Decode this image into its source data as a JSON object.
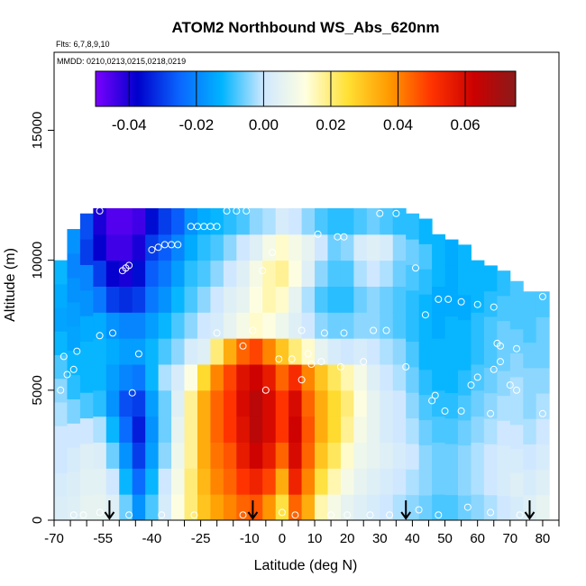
{
  "chart_data": {
    "type": "heatmap",
    "title": "ATOM2 Northbound WS_Abs_620nm",
    "subtitle_flights": "Flts: 6,7,8,9,10",
    "subtitle_dates": "MMDD: 0210,0213,0215,0218,0219",
    "xlabel": "Latitude (deg N)",
    "ylabel": "Altitude (m)",
    "xlim": [
      -70,
      85
    ],
    "ylim": [
      0,
      18000
    ],
    "x_ticks": [
      -70,
      -55,
      -40,
      -25,
      -10,
      0,
      10,
      20,
      30,
      40,
      50,
      60,
      70,
      80
    ],
    "y_ticks": [
      0,
      5000,
      10000,
      15000
    ],
    "colorbar": {
      "range": [
        -0.05,
        0.075
      ],
      "ticks": [
        "-0.04",
        "-0.02",
        "0.00",
        "0.02",
        "0.04",
        "0.06"
      ],
      "tick_values": [
        -0.04,
        -0.02,
        0.0,
        0.02,
        0.04,
        0.06
      ],
      "colors": [
        "#7a00ff",
        "#0000cc",
        "#0a66ff",
        "#00b4ff",
        "#cfe8ff",
        "#ffffe0",
        "#ffe033",
        "#ff9900",
        "#ff3300",
        "#cc0000",
        "#8b1a1a"
      ]
    },
    "columns": [
      {
        "lat": -68,
        "top": 10000,
        "values": [
          0.003,
          0.002,
          0.0,
          0.0,
          -0.002,
          -0.004,
          -0.008,
          -0.012,
          -0.015,
          -0.014,
          -0.012
        ]
      },
      {
        "lat": -64,
        "top": 11200,
        "values": [
          0.004,
          0.003,
          0.002,
          0.0,
          -0.005,
          -0.01,
          -0.012,
          -0.015,
          -0.016,
          -0.018,
          -0.02,
          -0.018
        ]
      },
      {
        "lat": -60,
        "top": 11800,
        "values": [
          0.006,
          0.005,
          0.004,
          0.0,
          -0.008,
          -0.012,
          -0.012,
          -0.014,
          -0.018,
          -0.02,
          -0.03,
          -0.028
        ]
      },
      {
        "lat": -56,
        "top": 12000,
        "values": [
          0.006,
          0.005,
          0.003,
          -0.002,
          -0.01,
          -0.012,
          -0.012,
          -0.014,
          -0.022,
          -0.03,
          -0.038,
          -0.04
        ]
      },
      {
        "lat": -52,
        "top": 12000,
        "values": [
          0.004,
          0.0,
          -0.006,
          -0.012,
          -0.018,
          -0.016,
          -0.014,
          -0.018,
          -0.03,
          -0.038,
          -0.044,
          -0.046
        ]
      },
      {
        "lat": -48,
        "top": 12000,
        "values": [
          -0.006,
          -0.012,
          -0.018,
          -0.024,
          -0.028,
          -0.02,
          -0.016,
          -0.02,
          -0.032,
          -0.04,
          -0.044,
          -0.046
        ]
      },
      {
        "lat": -44,
        "top": 12000,
        "values": [
          -0.018,
          -0.024,
          -0.03,
          -0.034,
          -0.03,
          -0.022,
          -0.016,
          -0.02,
          -0.03,
          -0.036,
          -0.04,
          -0.044
        ]
      },
      {
        "lat": -40,
        "top": 12000,
        "values": [
          -0.008,
          -0.012,
          -0.016,
          -0.018,
          -0.016,
          -0.012,
          -0.012,
          -0.016,
          -0.022,
          -0.026,
          -0.03,
          -0.036
        ]
      },
      {
        "lat": -36,
        "top": 12000,
        "values": [
          0.002,
          0.0,
          -0.004,
          -0.006,
          -0.006,
          -0.002,
          -0.008,
          -0.012,
          -0.018,
          -0.022,
          -0.026,
          -0.03
        ]
      },
      {
        "lat": -32,
        "top": 12000,
        "values": [
          0.012,
          0.01,
          0.008,
          0.006,
          0.004,
          0.002,
          -0.004,
          -0.008,
          -0.012,
          -0.016,
          -0.02,
          -0.026
        ]
      },
      {
        "lat": -28,
        "top": 12000,
        "values": [
          0.02,
          0.02,
          0.018,
          0.018,
          0.018,
          0.012,
          0.002,
          -0.004,
          -0.008,
          -0.01,
          -0.014,
          -0.018
        ]
      },
      {
        "lat": -24,
        "top": 12000,
        "values": [
          0.03,
          0.032,
          0.034,
          0.034,
          0.034,
          0.026,
          0.004,
          0.0,
          -0.004,
          -0.008,
          -0.01,
          -0.014
        ]
      },
      {
        "lat": -20,
        "top": 12000,
        "values": [
          0.036,
          0.04,
          0.042,
          0.044,
          0.044,
          0.04,
          0.02,
          0.002,
          0.0,
          -0.004,
          -0.008,
          -0.012
        ]
      },
      {
        "lat": -16,
        "top": 12000,
        "values": [
          0.04,
          0.044,
          0.046,
          0.05,
          0.05,
          0.048,
          0.034,
          0.006,
          0.004,
          0.0,
          -0.004,
          -0.01
        ]
      },
      {
        "lat": -12,
        "top": 12000,
        "values": [
          0.044,
          0.05,
          0.056,
          0.058,
          0.06,
          0.058,
          0.044,
          0.01,
          0.006,
          0.004,
          0.0,
          -0.008
        ]
      },
      {
        "lat": -8,
        "top": 12000,
        "values": [
          0.046,
          0.054,
          0.062,
          0.066,
          0.066,
          0.062,
          0.048,
          0.014,
          0.012,
          0.01,
          0.004,
          -0.004
        ]
      },
      {
        "lat": -4,
        "top": 12000,
        "values": [
          0.038,
          0.048,
          0.056,
          0.06,
          0.06,
          0.056,
          0.04,
          0.012,
          0.016,
          0.016,
          0.01,
          -0.002
        ]
      },
      {
        "lat": 0,
        "top": 12000,
        "values": [
          0.024,
          0.034,
          0.044,
          0.05,
          0.05,
          0.044,
          0.03,
          0.008,
          0.014,
          0.018,
          0.014,
          0.002
        ]
      },
      {
        "lat": 4,
        "top": 12000,
        "values": [
          0.044,
          0.054,
          0.06,
          0.062,
          0.06,
          0.052,
          0.02,
          0.004,
          0.006,
          0.012,
          0.01,
          0.0
        ]
      },
      {
        "lat": 8,
        "top": 12000,
        "values": [
          0.034,
          0.04,
          0.044,
          0.046,
          0.044,
          0.04,
          0.014,
          0.0,
          -0.002,
          0.004,
          0.006,
          -0.004
        ]
      },
      {
        "lat": 12,
        "top": 12000,
        "values": [
          0.016,
          0.024,
          0.03,
          0.034,
          0.034,
          0.03,
          0.006,
          -0.004,
          -0.008,
          -0.004,
          0.0,
          -0.008
        ]
      },
      {
        "lat": 16,
        "top": 12000,
        "values": [
          0.01,
          0.016,
          0.022,
          0.026,
          0.026,
          0.022,
          0.002,
          -0.006,
          -0.01,
          -0.008,
          -0.006,
          -0.01
        ]
      },
      {
        "lat": 20,
        "top": 12000,
        "values": [
          0.006,
          0.01,
          0.014,
          0.018,
          0.02,
          0.016,
          0.0,
          -0.006,
          -0.01,
          -0.008,
          -0.004,
          -0.01
        ]
      },
      {
        "lat": 24,
        "top": 12000,
        "values": [
          0.004,
          0.006,
          0.008,
          0.01,
          0.012,
          0.01,
          0.002,
          -0.004,
          -0.006,
          -0.002,
          0.002,
          -0.008
        ]
      },
      {
        "lat": 28,
        "top": 12000,
        "values": [
          0.002,
          0.004,
          0.006,
          0.006,
          0.006,
          0.004,
          0.0,
          -0.004,
          -0.004,
          0.0,
          0.004,
          -0.006
        ]
      },
      {
        "lat": 32,
        "top": 12000,
        "values": [
          0.0,
          0.002,
          0.004,
          0.002,
          0.002,
          0.0,
          -0.002,
          -0.006,
          -0.006,
          -0.002,
          0.002,
          -0.008
        ]
      },
      {
        "lat": 36,
        "top": 12000,
        "values": [
          -0.002,
          0.0,
          0.002,
          0.0,
          0.0,
          -0.002,
          -0.004,
          -0.008,
          -0.008,
          -0.006,
          -0.004,
          -0.01
        ]
      },
      {
        "lat": 40,
        "top": 11800,
        "values": [
          -0.004,
          -0.002,
          0.0,
          -0.002,
          -0.004,
          -0.006,
          -0.008,
          -0.01,
          -0.01,
          -0.008,
          -0.006,
          -0.01
        ]
      },
      {
        "lat": 44,
        "top": 11600,
        "values": [
          -0.006,
          -0.004,
          -0.004,
          -0.006,
          -0.008,
          -0.01,
          -0.012,
          -0.012,
          -0.012,
          -0.01,
          -0.008,
          -0.012
        ]
      },
      {
        "lat": 48,
        "top": 11000,
        "values": [
          -0.008,
          -0.006,
          -0.006,
          -0.008,
          -0.01,
          -0.012,
          -0.012,
          -0.014,
          -0.014,
          -0.012,
          -0.012
        ]
      },
      {
        "lat": 52,
        "top": 10800,
        "values": [
          -0.008,
          -0.006,
          -0.006,
          -0.008,
          -0.01,
          -0.012,
          -0.012,
          -0.012,
          -0.014,
          -0.014,
          -0.014
        ]
      },
      {
        "lat": 56,
        "top": 10600,
        "values": [
          -0.006,
          -0.004,
          -0.004,
          -0.006,
          -0.008,
          -0.01,
          -0.012,
          -0.012,
          -0.014,
          -0.012,
          -0.012
        ]
      },
      {
        "lat": 60,
        "top": 10000,
        "values": [
          -0.004,
          -0.002,
          -0.002,
          -0.004,
          -0.006,
          -0.008,
          -0.01,
          -0.01,
          -0.012,
          -0.012
        ]
      },
      {
        "lat": 64,
        "top": 9800,
        "values": [
          -0.002,
          0.0,
          0.0,
          -0.002,
          -0.004,
          -0.006,
          -0.008,
          -0.008,
          -0.01,
          -0.012
        ]
      },
      {
        "lat": 68,
        "top": 9600,
        "values": [
          0.0,
          0.002,
          0.002,
          0.0,
          -0.002,
          -0.004,
          -0.006,
          -0.006,
          -0.008,
          -0.01
        ]
      },
      {
        "lat": 72,
        "top": 9200,
        "values": [
          0.002,
          0.004,
          0.002,
          0.0,
          -0.002,
          -0.002,
          -0.004,
          -0.006,
          -0.008,
          -0.008
        ]
      },
      {
        "lat": 76,
        "top": 8800,
        "values": [
          0.004,
          0.002,
          0.0,
          -0.002,
          -0.004,
          -0.004,
          -0.006,
          -0.008,
          -0.008
        ]
      },
      {
        "lat": 80,
        "top": 8800,
        "values": [
          0.006,
          0.004,
          0.002,
          0.0,
          -0.002,
          -0.004,
          -0.006,
          -0.006,
          -0.008
        ]
      }
    ],
    "markers": [
      {
        "lat": -64,
        "alt": 200
      },
      {
        "lat": -61,
        "alt": 200
      },
      {
        "lat": -56,
        "alt": 300
      },
      {
        "lat": -47,
        "alt": 200
      },
      {
        "lat": -46,
        "alt": 4900
      },
      {
        "lat": -44,
        "alt": 6400
      },
      {
        "lat": -52,
        "alt": 7200
      },
      {
        "lat": -56,
        "alt": 7100
      },
      {
        "lat": -63,
        "alt": 6500
      },
      {
        "lat": -64,
        "alt": 5800
      },
      {
        "lat": -66,
        "alt": 5600
      },
      {
        "lat": -67,
        "alt": 6300
      },
      {
        "lat": -68,
        "alt": 5000
      },
      {
        "lat": -49,
        "alt": 9600
      },
      {
        "lat": -48,
        "alt": 9700
      },
      {
        "lat": -47,
        "alt": 9800
      },
      {
        "lat": -40,
        "alt": 10400
      },
      {
        "lat": -38,
        "alt": 10500
      },
      {
        "lat": -36,
        "alt": 10600
      },
      {
        "lat": -34,
        "alt": 10600
      },
      {
        "lat": -32,
        "alt": 10600
      },
      {
        "lat": -56,
        "alt": 11900
      },
      {
        "lat": -28,
        "alt": 11300
      },
      {
        "lat": -26,
        "alt": 11300
      },
      {
        "lat": -24,
        "alt": 11300
      },
      {
        "lat": -22,
        "alt": 11300
      },
      {
        "lat": -20,
        "alt": 11300
      },
      {
        "lat": -17,
        "alt": 11900
      },
      {
        "lat": -14,
        "alt": 11900
      },
      {
        "lat": -11,
        "alt": 11900
      },
      {
        "lat": -3,
        "alt": 10300
      },
      {
        "lat": -6,
        "alt": 9600
      },
      {
        "lat": 11,
        "alt": 11000
      },
      {
        "lat": 17,
        "alt": 10900
      },
      {
        "lat": 19,
        "alt": 10900
      },
      {
        "lat": 30,
        "alt": 11800
      },
      {
        "lat": 35,
        "alt": 11800
      },
      {
        "lat": 41,
        "alt": 9700
      },
      {
        "lat": 48,
        "alt": 8500
      },
      {
        "lat": 51,
        "alt": 8500
      },
      {
        "lat": 55,
        "alt": 8400
      },
      {
        "lat": 60,
        "alt": 8300
      },
      {
        "lat": 65,
        "alt": 8200
      },
      {
        "lat": 75,
        "alt": 9600
      },
      {
        "lat": 77,
        "alt": 9800
      },
      {
        "lat": 80,
        "alt": 8600
      },
      {
        "lat": 44,
        "alt": 7900
      },
      {
        "lat": 28,
        "alt": 7300
      },
      {
        "lat": 32,
        "alt": 7300
      },
      {
        "lat": 19,
        "alt": 7200
      },
      {
        "lat": 13,
        "alt": 7200
      },
      {
        "lat": 6,
        "alt": 7300
      },
      {
        "lat": -9,
        "alt": 7300
      },
      {
        "lat": -20,
        "alt": 7200
      },
      {
        "lat": -12,
        "alt": 6700
      },
      {
        "lat": -1,
        "alt": 6200
      },
      {
        "lat": 3,
        "alt": 6200
      },
      {
        "lat": 8,
        "alt": 6400
      },
      {
        "lat": 9,
        "alt": 6000
      },
      {
        "lat": 12,
        "alt": 6100
      },
      {
        "lat": 18,
        "alt": 5900
      },
      {
        "lat": 25,
        "alt": 6100
      },
      {
        "lat": 38,
        "alt": 5900
      },
      {
        "lat": 6,
        "alt": 5400
      },
      {
        "lat": -5,
        "alt": 5000
      },
      {
        "lat": 46,
        "alt": 4600
      },
      {
        "lat": 50,
        "alt": 4200
      },
      {
        "lat": 55,
        "alt": 4200
      },
      {
        "lat": 64,
        "alt": 4100
      },
      {
        "lat": 60,
        "alt": 5500
      },
      {
        "lat": 65,
        "alt": 5800
      },
      {
        "lat": 67,
        "alt": 6100
      },
      {
        "lat": 66,
        "alt": 6800
      },
      {
        "lat": 67,
        "alt": 6700
      },
      {
        "lat": 72,
        "alt": 6600
      },
      {
        "lat": 70,
        "alt": 5200
      },
      {
        "lat": 72,
        "alt": 5000
      },
      {
        "lat": 80,
        "alt": 4100
      },
      {
        "lat": 47,
        "alt": 4800
      },
      {
        "lat": 58,
        "alt": 5200
      },
      {
        "lat": 0,
        "alt": 300
      },
      {
        "lat": 4,
        "alt": 200
      },
      {
        "lat": 15,
        "alt": 200
      },
      {
        "lat": 20,
        "alt": 200
      },
      {
        "lat": 27,
        "alt": 200
      },
      {
        "lat": 33,
        "alt": 200
      },
      {
        "lat": 42,
        "alt": 400
      },
      {
        "lat": 48,
        "alt": 200
      },
      {
        "lat": 57,
        "alt": 500
      },
      {
        "lat": 64,
        "alt": 300
      },
      {
        "lat": 73,
        "alt": 200
      },
      {
        "lat": -12,
        "alt": 200
      },
      {
        "lat": -27,
        "alt": 200
      },
      {
        "lat": -37,
        "alt": 200
      }
    ],
    "flight_arrows_lat": [
      -53,
      -9,
      38,
      76
    ],
    "marker_color": "#ffffff",
    "background": "#ffffff"
  }
}
